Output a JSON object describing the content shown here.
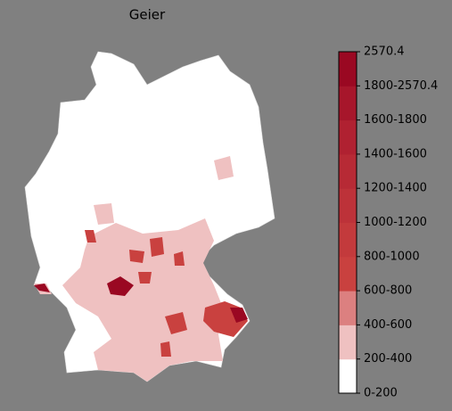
{
  "map": {
    "title": "Geier",
    "legend": {
      "ticks": [
        "0-200",
        "200-400",
        "400-600",
        "600-800",
        "800-1000",
        "1000-1200",
        "1200-1400",
        "1400-1600",
        "1600-1800",
        "1800-2570.4",
        "2570.4"
      ],
      "colors": [
        "#ffffff",
        "#efc1c1",
        "#dc8080",
        "#c9413f",
        "#c33a3c",
        "#bd3239",
        "#b72a35",
        "#b02131",
        "#a7162b",
        "#9a0822"
      ]
    }
  }
}
